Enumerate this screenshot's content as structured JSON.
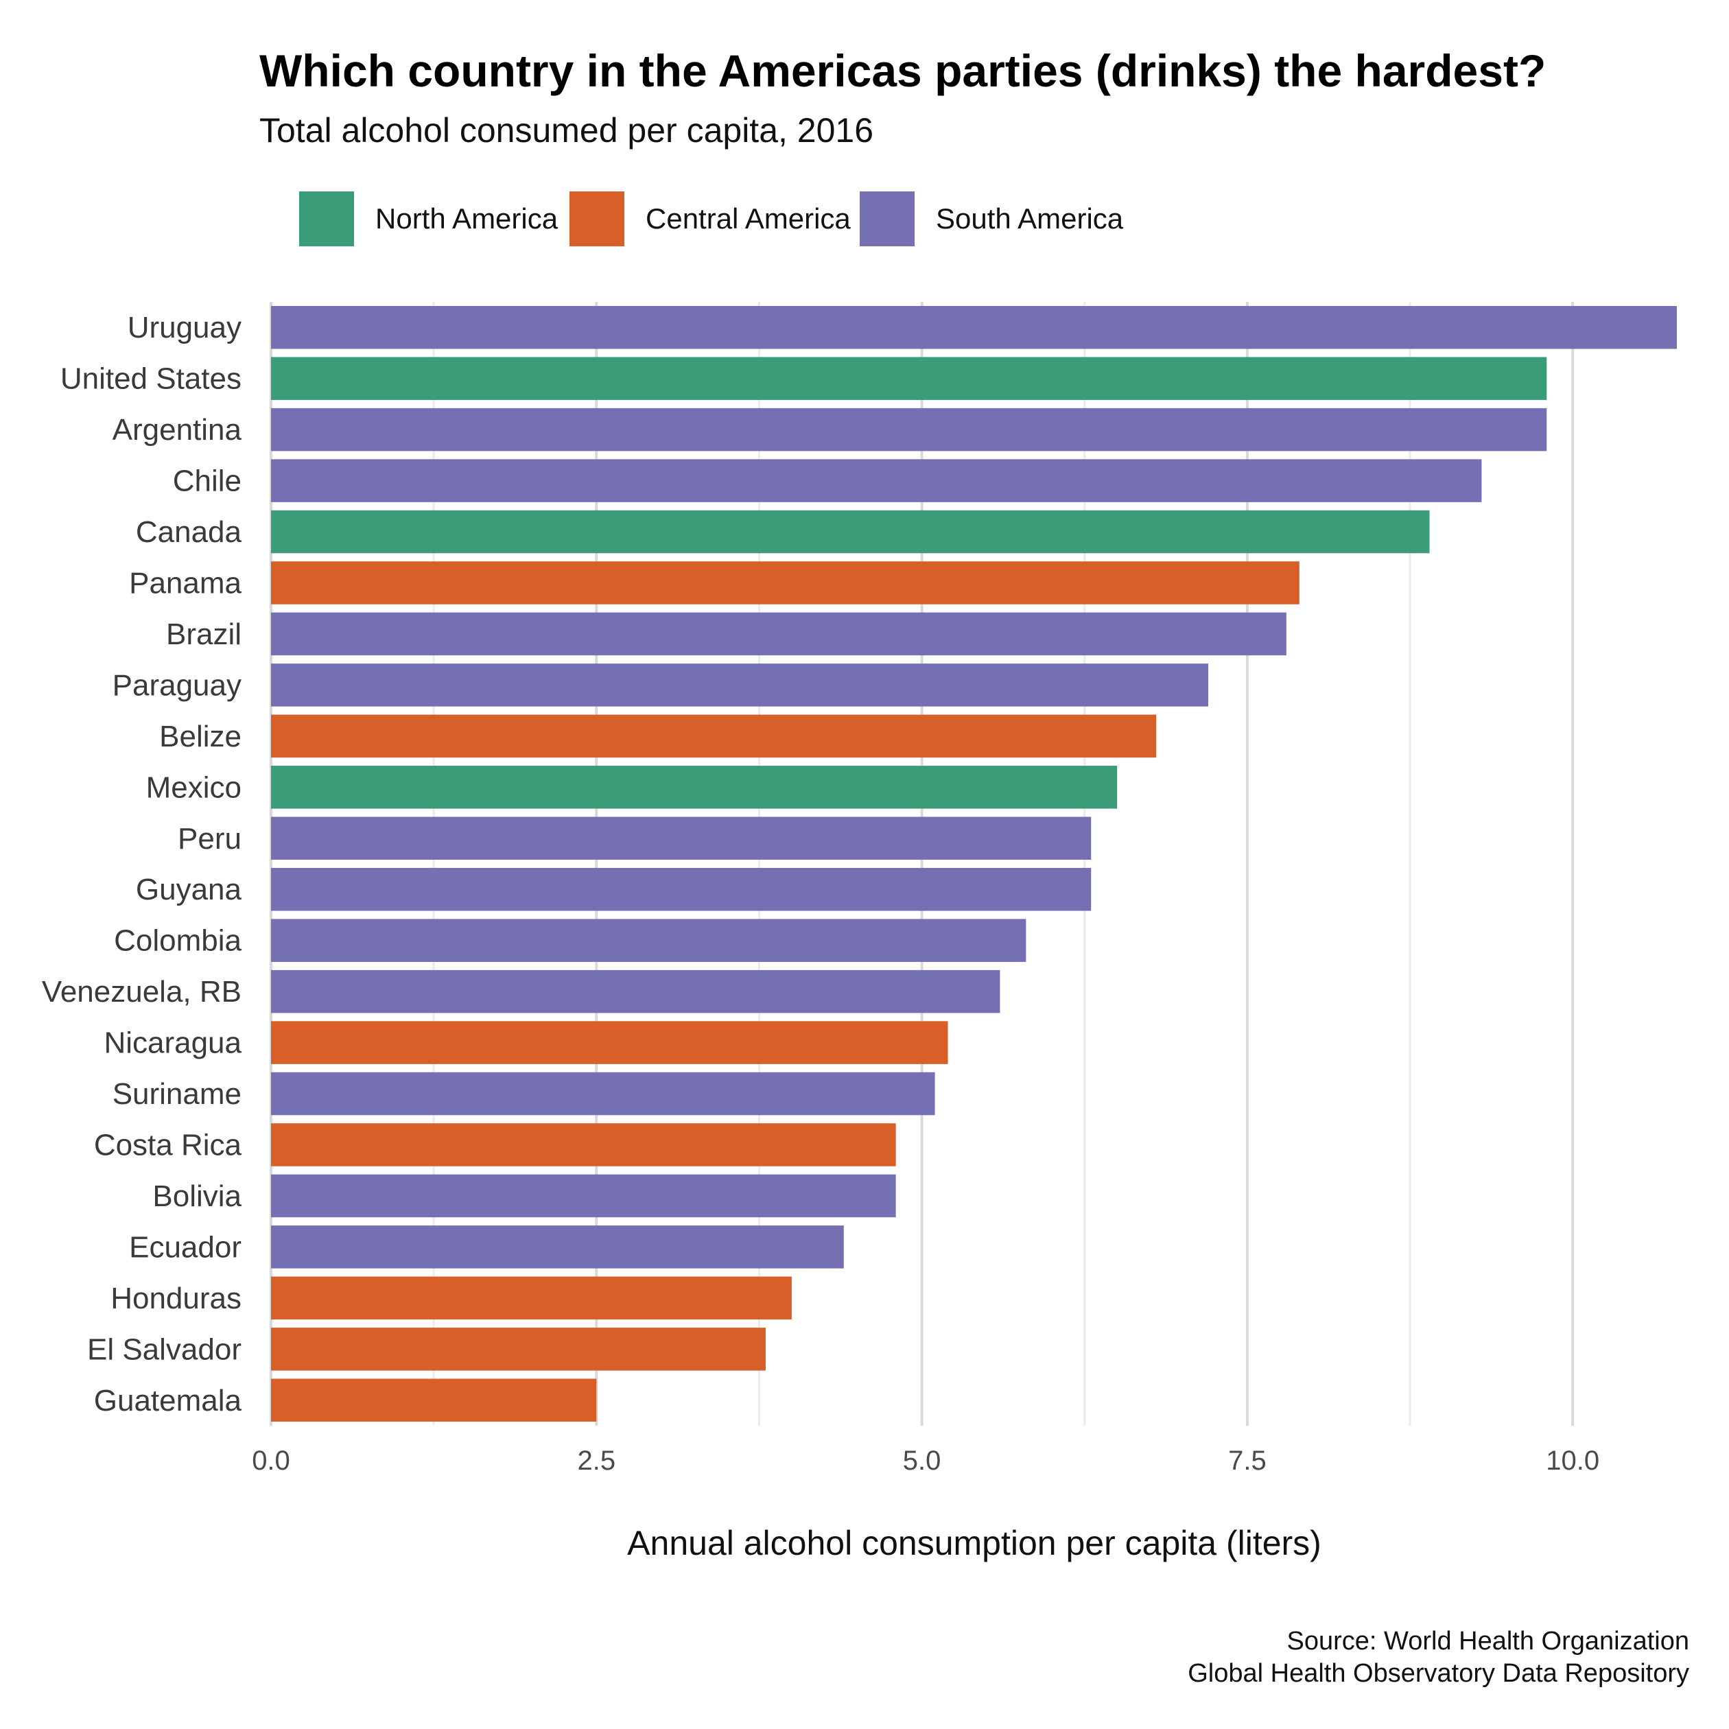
{
  "title": "Which country in the Americas parties (drinks) the hardest?",
  "subtitle": "Total alcohol consumed per capita, 2016",
  "caption": {
    "line1": "Source: World Health Organization",
    "line2": "Global Health Observatory Data Repository"
  },
  "colors": {
    "North America": "#3a9d78",
    "Central America": "#d95f28",
    "South America": "#7570b3"
  },
  "chart_data": {
    "type": "bar",
    "orientation": "horizontal",
    "title": "Which country in the Americas parties (drinks) the hardest?",
    "subtitle": "Total alcohol consumed per capita, 2016",
    "xlabel": "Annual alcohol consumption per capita (liters)",
    "ylabel": "",
    "xlim": [
      0,
      10.8
    ],
    "xticks": [
      0,
      2.5,
      5,
      7.5,
      10
    ],
    "xtick_labels": [
      "0.0",
      "2.5",
      "5.0",
      "7.5",
      "10.0"
    ],
    "grid": true,
    "legend": {
      "position": "top-left",
      "entries": [
        "North America",
        "Central America",
        "South America"
      ]
    },
    "categories": [
      "Uruguay",
      "United States",
      "Argentina",
      "Chile",
      "Canada",
      "Panama",
      "Brazil",
      "Paraguay",
      "Belize",
      "Mexico",
      "Peru",
      "Guyana",
      "Colombia",
      "Venezuela, RB",
      "Nicaragua",
      "Suriname",
      "Costa Rica",
      "Bolivia",
      "Ecuador",
      "Honduras",
      "El Salvador",
      "Guatemala"
    ],
    "values": [
      10.8,
      9.8,
      9.8,
      9.3,
      8.9,
      7.9,
      7.8,
      7.2,
      6.8,
      6.5,
      6.3,
      6.3,
      5.8,
      5.6,
      5.2,
      5.1,
      4.8,
      4.8,
      4.4,
      4.0,
      3.8,
      2.5
    ],
    "groups": [
      "South America",
      "North America",
      "South America",
      "South America",
      "North America",
      "Central America",
      "South America",
      "South America",
      "Central America",
      "North America",
      "South America",
      "South America",
      "South America",
      "South America",
      "Central America",
      "South America",
      "Central America",
      "South America",
      "South America",
      "Central America",
      "Central America",
      "Central America"
    ]
  }
}
